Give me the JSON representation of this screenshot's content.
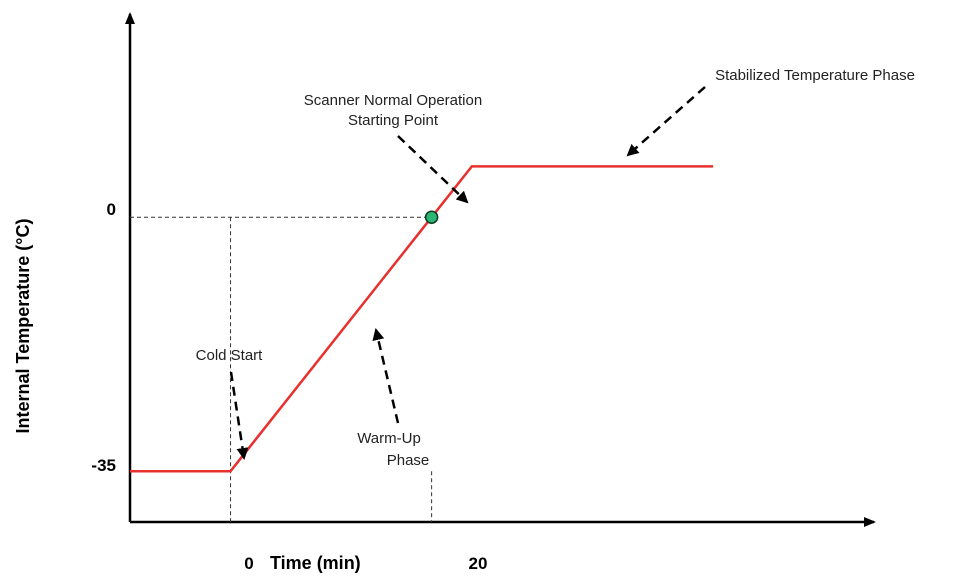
{
  "chart_data": {
    "type": "line",
    "xlabel": "Time (min)",
    "ylabel": "Internal Temperature (°C)",
    "x_ticks": [
      "0",
      "20"
    ],
    "y_ticks": [
      "0",
      "-35"
    ],
    "xlim": [
      -10,
      64
    ],
    "ylim": [
      -42,
      28
    ],
    "series": [
      {
        "color": "#e8302f",
        "x": [
          -10,
          0,
          20,
          24,
          48
        ],
        "y": [
          -35,
          -35,
          0,
          7,
          7
        ]
      }
    ],
    "marker": {
      "x": 20,
      "y": 0,
      "color": "#2bb673"
    },
    "annotations": [
      {
        "lines": [
          "Stabilized Temperature Phase"
        ]
      },
      {
        "lines": [
          "Scanner Normal Operation",
          "Starting Point"
        ]
      },
      {
        "lines": [
          "Cold Start"
        ]
      },
      {
        "lines": [
          "Warm-Up",
          "Phase"
        ]
      }
    ]
  }
}
